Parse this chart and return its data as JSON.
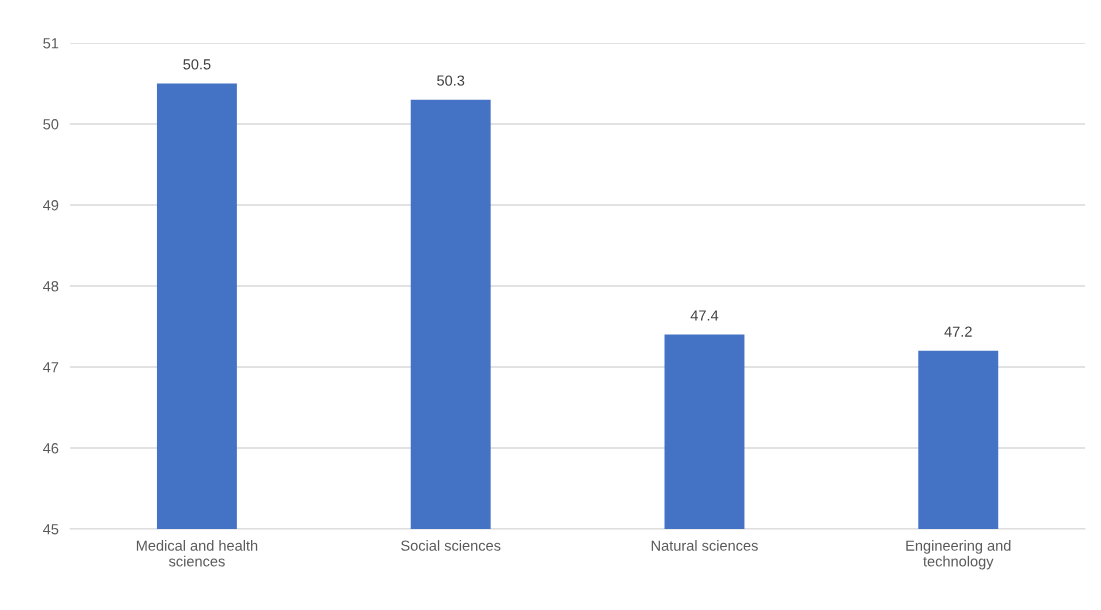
{
  "chart_data": {
    "type": "bar",
    "categories": [
      "Medical and health\nsciences",
      "Social sciences",
      "Natural sciences",
      "Engineering and\ntechnology"
    ],
    "values": [
      50.5,
      50.3,
      47.4,
      47.2
    ],
    "color": "#4472c4",
    "ylim": [
      45,
      51
    ],
    "yticks": [
      45,
      46,
      47,
      48,
      49,
      50,
      51
    ],
    "grid": "y",
    "data_labels": true
  }
}
